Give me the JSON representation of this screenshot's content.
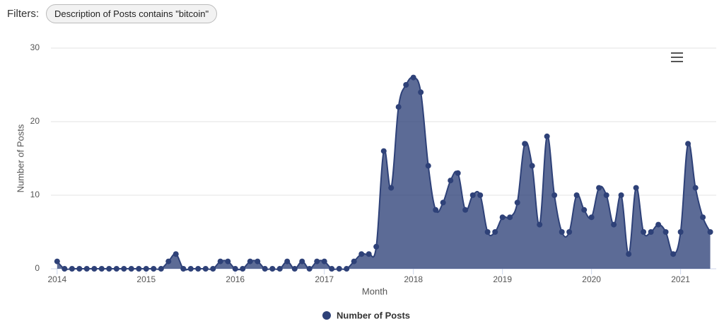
{
  "filters": {
    "label": "Filters:",
    "items": [
      "Description of Posts contains \"bitcoin\""
    ]
  },
  "chart_data": {
    "type": "areaspline",
    "x_label": "Month",
    "y_label": "Number of Posts",
    "x": [
      2014.0,
      2014.083,
      2014.167,
      2014.25,
      2014.333,
      2014.417,
      2014.5,
      2014.583,
      2014.667,
      2014.75,
      2014.833,
      2014.917,
      2015.0,
      2015.083,
      2015.167,
      2015.25,
      2015.333,
      2015.417,
      2015.5,
      2015.583,
      2015.667,
      2015.75,
      2015.833,
      2015.917,
      2016.0,
      2016.083,
      2016.167,
      2016.25,
      2016.333,
      2016.417,
      2016.5,
      2016.583,
      2016.667,
      2016.75,
      2016.833,
      2016.917,
      2017.0,
      2017.083,
      2017.167,
      2017.25,
      2017.333,
      2017.417,
      2017.5,
      2017.583,
      2017.667,
      2017.75,
      2017.833,
      2017.917,
      2018.0,
      2018.083,
      2018.167,
      2018.25,
      2018.333,
      2018.417,
      2018.5,
      2018.583,
      2018.667,
      2018.75,
      2018.833,
      2018.917,
      2019.0,
      2019.083,
      2019.167,
      2019.25,
      2019.333,
      2019.417,
      2019.5,
      2019.583,
      2019.667,
      2019.75,
      2019.833,
      2019.917,
      2020.0,
      2020.083,
      2020.167,
      2020.25,
      2020.333,
      2020.417,
      2020.5,
      2020.583,
      2020.667,
      2020.75,
      2020.833,
      2020.917,
      2021.0,
      2021.083,
      2021.167,
      2021.25,
      2021.333
    ],
    "series": [
      {
        "name": "Number of Posts",
        "color": "#2e4178",
        "values": [
          1,
          0,
          0,
          0,
          0,
          0,
          0,
          0,
          0,
          0,
          0,
          0,
          0,
          0,
          0,
          1,
          2,
          0,
          0,
          0,
          0,
          0,
          1,
          1,
          0,
          0,
          1,
          1,
          0,
          0,
          0,
          1,
          0,
          1,
          0,
          1,
          1,
          0,
          0,
          0,
          1,
          2,
          2,
          3,
          16,
          11,
          22,
          25,
          26,
          24,
          14,
          8,
          9,
          12,
          13,
          8,
          10,
          10,
          5,
          5,
          7,
          7,
          9,
          17,
          14,
          6,
          18,
          10,
          5,
          5,
          10,
          8,
          7,
          11,
          10,
          6,
          10,
          2,
          11,
          5,
          5,
          6,
          5,
          2,
          5,
          17,
          11,
          7,
          5
        ]
      }
    ],
    "xlim": [
      2013.93,
      2021.4
    ],
    "xticks": [
      2014,
      2015,
      2016,
      2017,
      2018,
      2019,
      2020,
      2021
    ],
    "ylim": [
      0,
      30
    ],
    "yticks": [
      0,
      10,
      20,
      30
    ],
    "grid": true,
    "legend": "bottom"
  }
}
